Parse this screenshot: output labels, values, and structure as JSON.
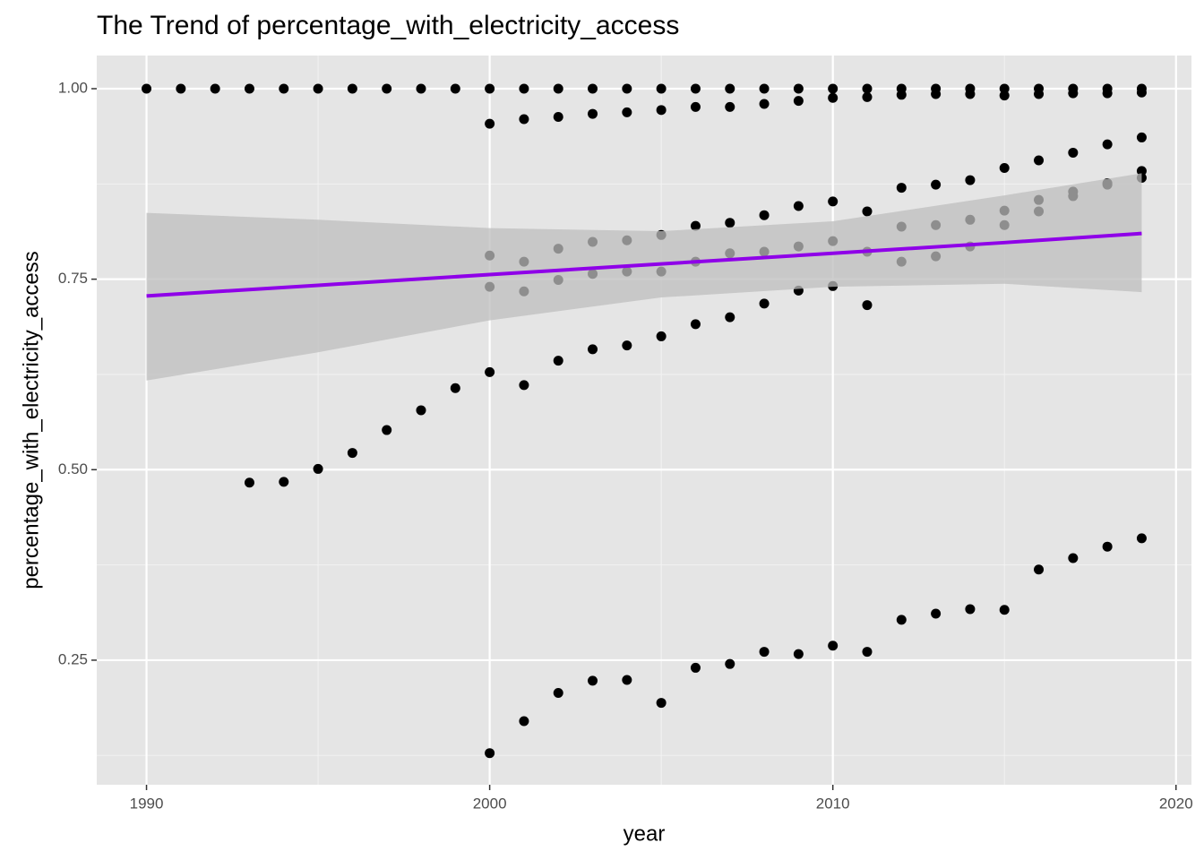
{
  "chart_data": {
    "type": "scatter",
    "title": "The Trend of percentage_with_electricity_access",
    "x_label": "year",
    "y_label": "percentage_with_electricity_access",
    "point_color": "#000000",
    "x": [
      1990,
      1991,
      1992,
      1993,
      1994,
      1995,
      1996,
      1997,
      1998,
      1999,
      1993,
      1994,
      1995,
      1996,
      1997,
      1998,
      1999,
      2000,
      2000,
      2000,
      2000,
      2000,
      2000,
      2001,
      2001,
      2001,
      2001,
      2001,
      2001,
      2002,
      2002,
      2002,
      2002,
      2002,
      2002,
      2003,
      2003,
      2003,
      2003,
      2003,
      2003,
      2004,
      2004,
      2004,
      2004,
      2004,
      2004,
      2005,
      2005,
      2005,
      2005,
      2005,
      2005,
      2006,
      2006,
      2006,
      2006,
      2006,
      2006,
      2007,
      2007,
      2007,
      2007,
      2007,
      2007,
      2008,
      2008,
      2008,
      2008,
      2008,
      2008,
      2009,
      2009,
      2009,
      2009,
      2009,
      2009,
      2010,
      2010,
      2010,
      2010,
      2010,
      2010,
      2011,
      2011,
      2011,
      2011,
      2011,
      2011,
      2012,
      2012,
      2012,
      2012,
      2012,
      2012,
      2013,
      2013,
      2013,
      2013,
      2013,
      2013,
      2014,
      2014,
      2014,
      2014,
      2014,
      2014,
      2015,
      2015,
      2015,
      2015,
      2015,
      2015,
      2016,
      2016,
      2016,
      2016,
      2016,
      2016,
      2017,
      2017,
      2017,
      2017,
      2017,
      2017,
      2018,
      2018,
      2018,
      2018,
      2018,
      2018,
      2019,
      2019,
      2019,
      2019,
      2019,
      2019
    ],
    "y": [
      1.0,
      1.0,
      1.0,
      1.0,
      1.0,
      1.0,
      1.0,
      1.0,
      1.0,
      1.0,
      0.483,
      0.484,
      0.501,
      0.522,
      0.552,
      0.578,
      0.607,
      1.0,
      0.954,
      0.781,
      0.74,
      0.628,
      0.128,
      1.0,
      0.96,
      0.773,
      0.734,
      0.611,
      0.17,
      1.0,
      0.963,
      0.79,
      0.749,
      0.643,
      0.207,
      1.0,
      0.967,
      0.799,
      0.757,
      0.658,
      0.223,
      1.0,
      0.969,
      0.801,
      0.76,
      0.663,
      0.224,
      1.0,
      0.972,
      0.808,
      0.76,
      0.675,
      0.194,
      1.0,
      0.976,
      0.82,
      0.773,
      0.691,
      0.24,
      1.0,
      0.976,
      0.824,
      0.784,
      0.7,
      0.245,
      1.0,
      0.98,
      0.834,
      0.786,
      0.718,
      0.261,
      1.0,
      0.984,
      0.846,
      0.793,
      0.735,
      0.258,
      1.0,
      0.988,
      0.852,
      0.8,
      0.741,
      0.269,
      1.0,
      0.989,
      0.839,
      0.786,
      0.716,
      0.261,
      1.0,
      0.992,
      0.87,
      0.819,
      0.773,
      0.303,
      1.0,
      0.993,
      0.874,
      0.821,
      0.78,
      0.311,
      1.0,
      0.993,
      0.88,
      0.828,
      0.793,
      0.317,
      1.0,
      0.991,
      0.896,
      0.84,
      0.821,
      0.316,
      1.0,
      0.993,
      0.906,
      0.854,
      0.839,
      0.369,
      1.0,
      0.994,
      0.916,
      0.865,
      0.859,
      0.384,
      1.0,
      0.994,
      0.927,
      0.876,
      0.874,
      0.399,
      1.0,
      0.995,
      0.936,
      0.892,
      0.883,
      0.41
    ],
    "smooth": {
      "color": "#8f00e8",
      "band_color": "#bdbdbd",
      "x": [
        1990,
        1995,
        2000,
        2005,
        2010,
        2015,
        2019
      ],
      "y": [
        0.728,
        0.742,
        0.756,
        0.77,
        0.784,
        0.798,
        0.81
      ],
      "ymin": [
        0.617,
        0.654,
        0.696,
        0.726,
        0.74,
        0.744,
        0.733
      ],
      "ymax": [
        0.837,
        0.828,
        0.817,
        0.813,
        0.826,
        0.86,
        0.889
      ]
    },
    "xlim": [
      1988.55,
      2020.45
    ],
    "ylim": [
      0.0865,
      1.0435
    ],
    "xticks": [
      1990,
      2000,
      2010,
      2020
    ],
    "yticks": [
      {
        "value": 0.25,
        "label": "0.25"
      },
      {
        "value": 0.5,
        "label": "0.50"
      },
      {
        "value": 0.75,
        "label": "0.75"
      },
      {
        "value": 1.0,
        "label": "1.00"
      }
    ],
    "grid": true
  }
}
